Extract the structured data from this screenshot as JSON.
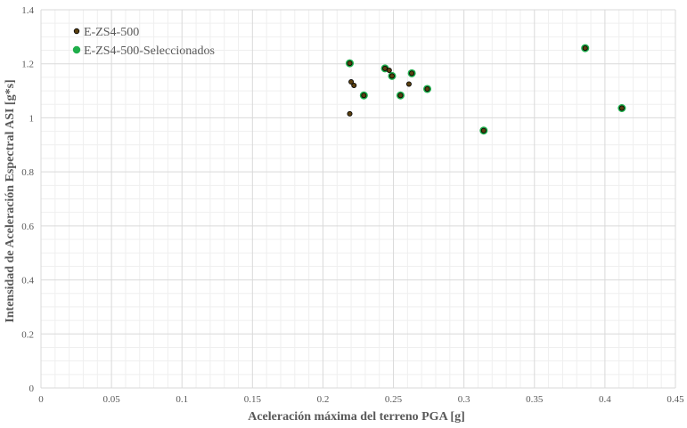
{
  "chart_data": {
    "type": "scatter",
    "title": "",
    "xlabel": "Aceleración máxima del terreno PGA [g]",
    "ylabel": "Intensidad de Aceleración Espectral ASI [g*s]",
    "xlim": [
      0,
      0.45
    ],
    "ylim": [
      0,
      1.4
    ],
    "x_ticks": [
      "0",
      "0.05",
      "0.1",
      "0.15",
      "0.2",
      "0.25",
      "0.3",
      "0.35",
      "0.4",
      "0.45"
    ],
    "y_ticks": [
      "0",
      "0.2",
      "0.4",
      "0.6",
      "0.8",
      "1",
      "1.2",
      "1.4"
    ],
    "grid": true,
    "legend_position": "top-left",
    "series": [
      {
        "name": "E-ZS4-500",
        "color": "#5a4010",
        "points": [
          {
            "x": 0.219,
            "y": 1.202
          },
          {
            "x": 0.22,
            "y": 1.133
          },
          {
            "x": 0.222,
            "y": 1.12
          },
          {
            "x": 0.219,
            "y": 1.015
          },
          {
            "x": 0.244,
            "y": 1.183
          },
          {
            "x": 0.247,
            "y": 1.176
          },
          {
            "x": 0.249,
            "y": 1.155
          },
          {
            "x": 0.261,
            "y": 1.125
          },
          {
            "x": 0.263,
            "y": 1.165
          },
          {
            "x": 0.229,
            "y": 1.083
          },
          {
            "x": 0.255,
            "y": 1.083
          },
          {
            "x": 0.274,
            "y": 1.107
          },
          {
            "x": 0.314,
            "y": 0.953
          },
          {
            "x": 0.386,
            "y": 1.258
          },
          {
            "x": 0.412,
            "y": 1.036
          }
        ]
      },
      {
        "name": "E-ZS4-500-Seleccionados",
        "color": "#1fae4b",
        "points": [
          {
            "x": 0.219,
            "y": 1.202
          },
          {
            "x": 0.229,
            "y": 1.083
          },
          {
            "x": 0.244,
            "y": 1.183
          },
          {
            "x": 0.249,
            "y": 1.155
          },
          {
            "x": 0.255,
            "y": 1.083
          },
          {
            "x": 0.263,
            "y": 1.165
          },
          {
            "x": 0.274,
            "y": 1.107
          },
          {
            "x": 0.314,
            "y": 0.953
          },
          {
            "x": 0.386,
            "y": 1.258
          },
          {
            "x": 0.412,
            "y": 1.036
          }
        ]
      }
    ]
  }
}
